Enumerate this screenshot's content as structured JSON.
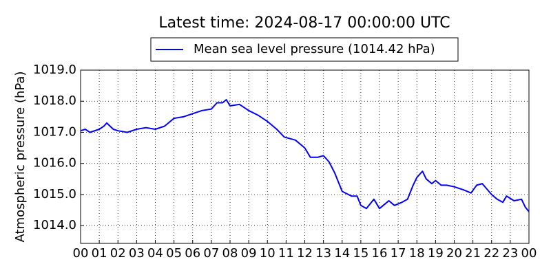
{
  "chart_data": {
    "type": "line",
    "title": "Latest time: 2024-08-17 00:00:00 UTC",
    "y_label": "Atmospheric pressure (hPa)",
    "x": [
      0,
      0.25,
      0.5,
      1.0,
      1.25,
      1.4,
      1.75,
      2.0,
      2.5,
      3.0,
      3.5,
      4.0,
      4.5,
      5.0,
      5.5,
      6.0,
      6.5,
      7.0,
      7.3,
      7.6,
      7.8,
      8.0,
      8.5,
      9.0,
      9.5,
      10.0,
      10.5,
      10.9,
      11.5,
      12.0,
      12.3,
      12.7,
      13.0,
      13.3,
      13.6,
      14.0,
      14.5,
      14.8,
      15.0,
      15.3,
      15.7,
      16.0,
      16.2,
      16.5,
      16.8,
      17.2,
      17.5,
      17.8,
      18.0,
      18.3,
      18.5,
      18.8,
      19.0,
      19.3,
      19.6,
      20.0,
      20.5,
      20.9,
      21.2,
      21.5,
      22.0,
      22.3,
      22.6,
      22.8,
      23.2,
      23.6,
      23.8,
      24.0
    ],
    "series": [
      {
        "name": "Mean sea level pressure (1014.42 hPa)",
        "color": "#0000ff",
        "values": [
          1017.05,
          1017.1,
          1017.0,
          1017.1,
          1017.2,
          1017.3,
          1017.1,
          1017.05,
          1017.0,
          1017.1,
          1017.15,
          1017.1,
          1017.2,
          1017.45,
          1017.5,
          1017.6,
          1017.7,
          1017.75,
          1017.95,
          1017.95,
          1018.05,
          1017.85,
          1017.9,
          1017.7,
          1017.55,
          1017.35,
          1017.1,
          1016.85,
          1016.75,
          1016.5,
          1016.2,
          1016.2,
          1016.25,
          1016.05,
          1015.7,
          1015.1,
          1014.95,
          1014.95,
          1014.65,
          1014.55,
          1014.85,
          1014.55,
          1014.65,
          1014.8,
          1014.65,
          1014.75,
          1014.85,
          1015.3,
          1015.55,
          1015.75,
          1015.5,
          1015.35,
          1015.45,
          1015.3,
          1015.3,
          1015.25,
          1015.15,
          1015.05,
          1015.3,
          1015.35,
          1015.0,
          1014.85,
          1014.75,
          1014.95,
          1014.8,
          1014.85,
          1014.6,
          1014.45
        ]
      }
    ],
    "xlim": [
      0,
      24
    ],
    "xticks": [
      {
        "value": 0,
        "label": "00"
      },
      {
        "value": 1,
        "label": "01"
      },
      {
        "value": 2,
        "label": "02"
      },
      {
        "value": 3,
        "label": "03"
      },
      {
        "value": 4,
        "label": "04"
      },
      {
        "value": 5,
        "label": "05"
      },
      {
        "value": 6,
        "label": "06"
      },
      {
        "value": 7,
        "label": "07"
      },
      {
        "value": 8,
        "label": "08"
      },
      {
        "value": 9,
        "label": "09"
      },
      {
        "value": 10,
        "label": "10"
      },
      {
        "value": 11,
        "label": "11"
      },
      {
        "value": 12,
        "label": "12"
      },
      {
        "value": 13,
        "label": "13"
      },
      {
        "value": 14,
        "label": "14"
      },
      {
        "value": 15,
        "label": "15"
      },
      {
        "value": 16,
        "label": "16"
      },
      {
        "value": 17,
        "label": "17"
      },
      {
        "value": 18,
        "label": "18"
      },
      {
        "value": 19,
        "label": "19"
      },
      {
        "value": 20,
        "label": "20"
      },
      {
        "value": 21,
        "label": "21"
      },
      {
        "value": 22,
        "label": "22"
      },
      {
        "value": 23,
        "label": "23"
      },
      {
        "value": 24,
        "label": "00"
      }
    ],
    "ylim": [
      1013.43,
      1019.0
    ],
    "yticks": [
      {
        "value": 1014,
        "label": "1014.0"
      },
      {
        "value": 1015,
        "label": "1015.0"
      },
      {
        "value": 1016,
        "label": "1016.0"
      },
      {
        "value": 1017,
        "label": "1017.0"
      },
      {
        "value": 1018,
        "label": "1018.0"
      },
      {
        "value": 1019,
        "label": "1019.0"
      }
    ],
    "grid": true,
    "legend": "top"
  }
}
